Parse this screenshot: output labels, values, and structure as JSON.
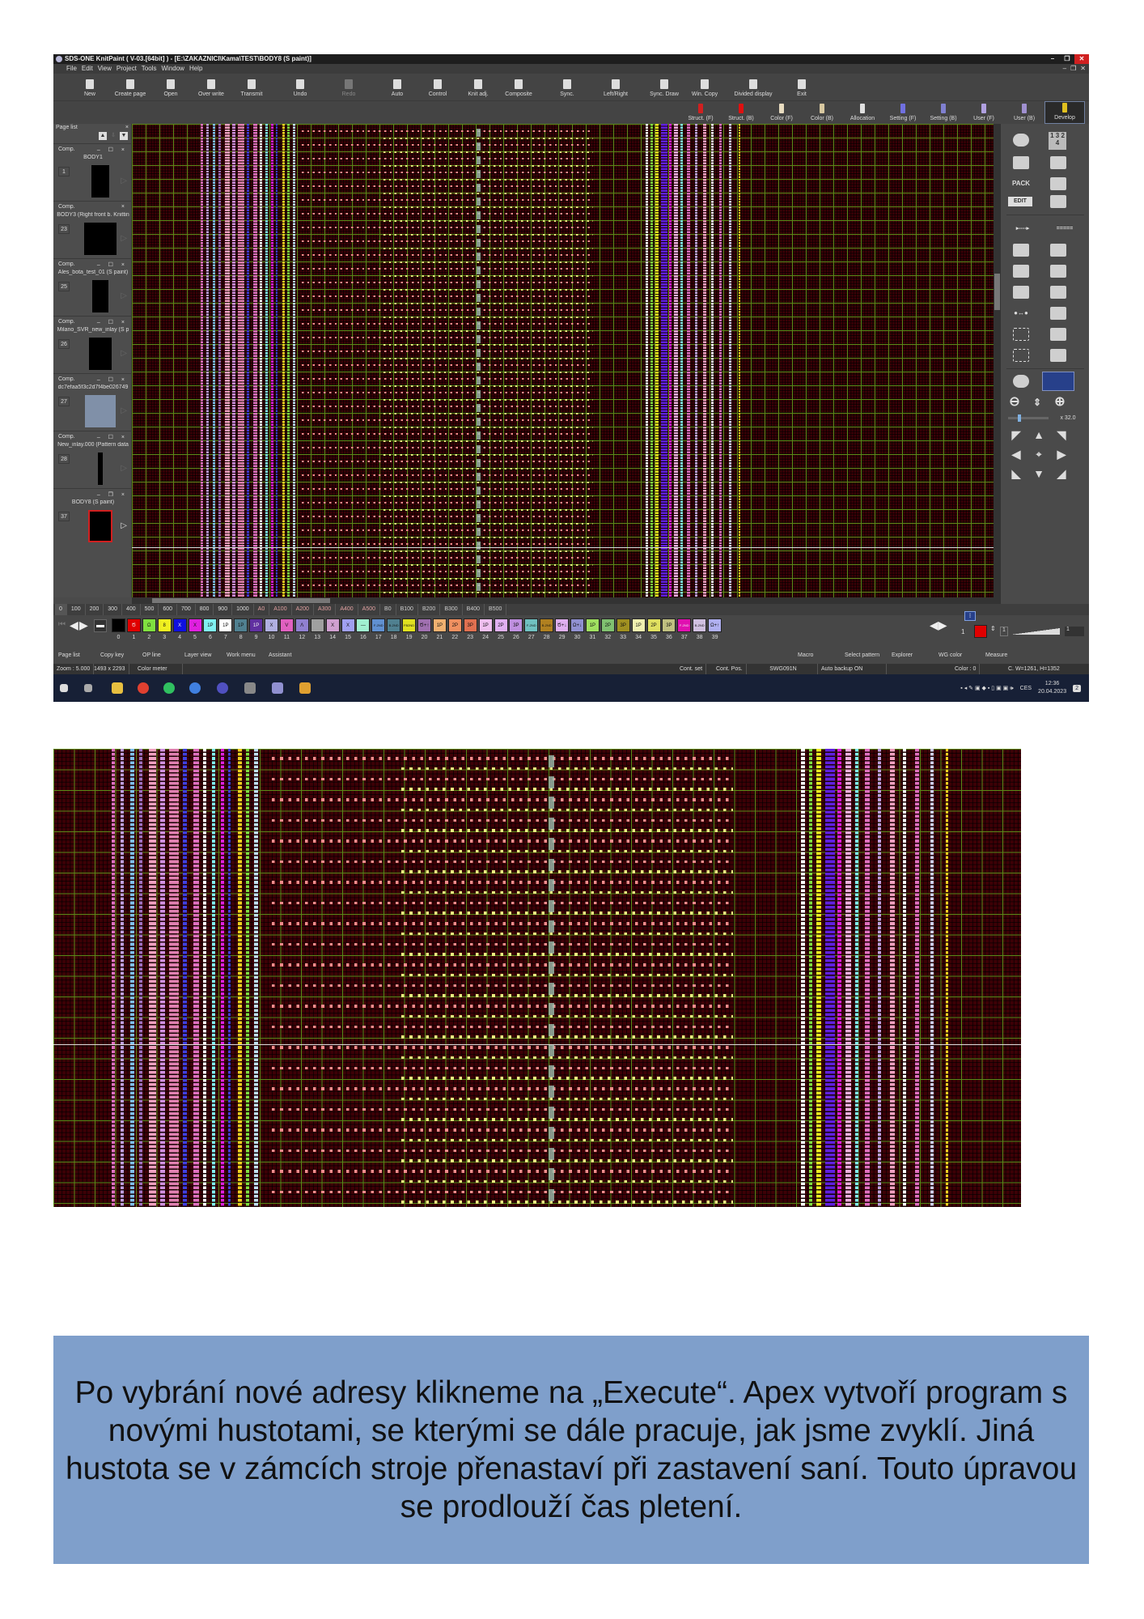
{
  "app": {
    "title": "SDS-ONE KnitPaint ( V-03.[64bit] ) - [E:\\ZAKAZNICI\\Kama\\TEST\\BODY8 (S paint)]",
    "window_buttons": [
      "–",
      "❐",
      "✕"
    ],
    "mdi_buttons": [
      "–",
      "❐",
      "✕"
    ],
    "menu": [
      "File",
      "Edit",
      "View",
      "Project",
      "Tools",
      "Window",
      "Help"
    ],
    "toolbar": [
      {
        "label": "New",
        "enabled": true
      },
      {
        "label": "Create page",
        "enabled": true
      },
      {
        "label": "Open",
        "enabled": true
      },
      {
        "label": "Over write",
        "enabled": true
      },
      {
        "label": "Transmit",
        "enabled": true
      },
      {
        "label": "Undo",
        "enabled": true
      },
      {
        "label": "Redo",
        "enabled": false
      },
      {
        "label": "Auto",
        "enabled": true
      },
      {
        "label": "Control",
        "enabled": true
      },
      {
        "label": "Knit adj.",
        "enabled": true
      },
      {
        "label": "Composite",
        "enabled": true
      },
      {
        "label": "Sync.",
        "enabled": true
      },
      {
        "label": "Left/Right",
        "enabled": true
      },
      {
        "label": "Sync. Draw",
        "enabled": true
      },
      {
        "label": "Win. Copy",
        "enabled": true
      },
      {
        "label": "Divided display",
        "enabled": true
      },
      {
        "label": "Exit",
        "enabled": true
      }
    ],
    "view_tabs": [
      {
        "label": "Struct. (F)",
        "color": "#d02020"
      },
      {
        "label": "Struct. (B)",
        "color": "#e01010"
      },
      {
        "label": "Color (F)",
        "color": "#e8dcc0"
      },
      {
        "label": "Color (B)",
        "color": "#d8c8a0"
      },
      {
        "label": "Allocation",
        "color": "#e0e0e0"
      },
      {
        "label": "Setting (F)",
        "color": "#7070e0"
      },
      {
        "label": "Setting (B)",
        "color": "#8080d0"
      },
      {
        "label": "User (F)",
        "color": "#b0a0e0"
      },
      {
        "label": "User (B)",
        "color": "#a090d0"
      },
      {
        "label": "Develop",
        "color": "#e0c020",
        "active": true
      }
    ],
    "page_list": {
      "title": "Page list",
      "close": "×",
      "items": [
        {
          "type": "Comp.",
          "name": "BODY1",
          "number": "1",
          "controls": "– ☐ ×"
        },
        {
          "type": "Comp.",
          "name": "BODY3 (Right front b. Knittin",
          "number": "23",
          "controls": "×"
        },
        {
          "type": "Comp.",
          "name": "Ales_bota_test_01 (S paint)",
          "number": "25",
          "controls": "– ☐ ×"
        },
        {
          "type": "Comp.",
          "name": "Milano_SVR_new_inlay (S p",
          "number": "26",
          "controls": "– ☐ ×"
        },
        {
          "type": "Comp.",
          "name": "dc7efaa5f3c2d7f4be026749",
          "number": "27",
          "controls": "– ☐ ×"
        },
        {
          "type": "Comp.",
          "name": "New_inlay.000 (Pattern data",
          "number": "28",
          "controls": "– ☐ ×"
        },
        {
          "type": "",
          "name": "BODY8 (S paint)",
          "number": "37",
          "controls": "– ❐ ×",
          "selected": true
        }
      ]
    },
    "right_tools": {
      "numbers_icon": "1 3 2 4",
      "pack_label": "PACK",
      "edit_label": "EDIT",
      "zoom_factor": "x 32.0"
    },
    "ruler": [
      "0",
      "100",
      "200",
      "300",
      "400",
      "500",
      "600",
      "700",
      "800",
      "900",
      "1000",
      "A0",
      "A100",
      "A200",
      "A300",
      "A400",
      "A500",
      "B0",
      "B100",
      "B200",
      "B300",
      "B400",
      "B500"
    ],
    "palette": [
      {
        "n": "0",
        "color": "#000000",
        "sym": ""
      },
      {
        "n": "1",
        "color": "#e00000",
        "sym": "Ծ"
      },
      {
        "n": "2",
        "color": "#80e040",
        "sym": "Ω"
      },
      {
        "n": "3",
        "color": "#f0f020",
        "sym": "8"
      },
      {
        "n": "4",
        "color": "#1010e0",
        "sym": "X"
      },
      {
        "n": "5",
        "color": "#e020e0",
        "sym": "X"
      },
      {
        "n": "6",
        "color": "#80f0f0",
        "sym": "1P"
      },
      {
        "n": "7",
        "color": "#ffffff",
        "sym": "1P"
      },
      {
        "n": "8",
        "color": "#508090",
        "sym": "1P"
      },
      {
        "n": "9",
        "color": "#6030a0",
        "sym": "1P"
      },
      {
        "n": "10",
        "color": "#b0b0e0",
        "sym": "X"
      },
      {
        "n": "11",
        "color": "#e060c0",
        "sym": "V"
      },
      {
        "n": "12",
        "color": "#9080d0",
        "sym": "Λ"
      },
      {
        "n": "13",
        "color": "#a0a0a0",
        "sym": ""
      },
      {
        "n": "14",
        "color": "#d0a0d0",
        "sym": "X"
      },
      {
        "n": "15",
        "color": "#a0a0f0",
        "sym": "X"
      },
      {
        "n": "16",
        "color": "#a0f0d0",
        "sym": "—"
      },
      {
        "n": "17",
        "color": "#6090d0",
        "sym": "F-2ND"
      },
      {
        "n": "18",
        "color": "#508090",
        "sym": "B-2ND"
      },
      {
        "n": "19",
        "color": "#e0e020",
        "sym": "FB2ND"
      },
      {
        "n": "20",
        "color": "#a070b0",
        "sym": "Ծ+↑"
      },
      {
        "n": "21",
        "color": "#f0b070",
        "sym": "1P"
      },
      {
        "n": "22",
        "color": "#f09060",
        "sym": "2P"
      },
      {
        "n": "23",
        "color": "#e07050",
        "sym": "3P"
      },
      {
        "n": "24",
        "color": "#f0c0f0",
        "sym": "1P"
      },
      {
        "n": "25",
        "color": "#e0b0f0",
        "sym": "2P"
      },
      {
        "n": "26",
        "color": "#c090e0",
        "sym": "3P"
      },
      {
        "n": "27",
        "color": "#70c0c0",
        "sym": "F-2ND"
      },
      {
        "n": "28",
        "color": "#b08020",
        "sym": "B-2ND"
      },
      {
        "n": "29",
        "color": "#e0b0f0",
        "sym": "Ծ+↓"
      },
      {
        "n": "30",
        "color": "#9090d0",
        "sym": "Ω+↓"
      },
      {
        "n": "31",
        "color": "#a0e060",
        "sym": "1P"
      },
      {
        "n": "32",
        "color": "#80c070",
        "sym": "2P"
      },
      {
        "n": "33",
        "color": "#a09020",
        "sym": "3P"
      },
      {
        "n": "34",
        "color": "#f0f0b0",
        "sym": "1P"
      },
      {
        "n": "35",
        "color": "#e0e060",
        "sym": "2P"
      },
      {
        "n": "36",
        "color": "#c0c080",
        "sym": "3P"
      },
      {
        "n": "37",
        "color": "#e010b0",
        "sym": "F-2ND"
      },
      {
        "n": "38",
        "color": "#d0c0e0",
        "sym": "B-2ND"
      },
      {
        "n": "39",
        "color": "#b0b0f0",
        "sym": "Ω+↑"
      }
    ],
    "current_color": {
      "number": "1",
      "color": "#e00000"
    },
    "width_value": "1",
    "bottom_tabs_left": [
      "Page list",
      "Copy key",
      "OP line",
      "Layer view",
      "Work menu",
      "Assistant"
    ],
    "bottom_tabs_right": [
      "Macro",
      "Select pattern",
      "Explorer",
      "WG color",
      "Measure"
    ],
    "status": {
      "zoom": "Zoom : 5.000",
      "size": "1493 x 2293",
      "color_meter": "Color meter",
      "cont_set": "Cont. set",
      "cont_pos": "Cont. Pos.",
      "machine": "SWG091N",
      "backup": "Auto backup ON",
      "color": "Color :   0",
      "cursor": "C. W=1261, H=1352"
    },
    "taskbar": {
      "lang": "CES",
      "time": "12:36",
      "date": "20.04.2023",
      "notifications": "2"
    }
  },
  "caption": "Po vybrání nové adresy klikneme na „Execute“. Apex vytvoří program s novými hustotami, se kterými se dále pracuje, jak jsme zvyklí. Jiná hustota se v zámcích stroje přenastaví při zastavení saní. Touto úpravou se prodlouží čas pletení."
}
